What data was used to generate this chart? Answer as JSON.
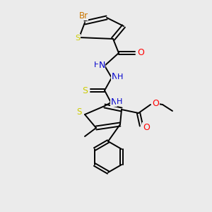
{
  "bg_color": "#ebebeb",
  "atom_colors": {
    "C": "#000000",
    "H": "#000000",
    "N": "#0000cc",
    "O": "#ff0000",
    "S": "#cccc00",
    "Br": "#cc7700"
  },
  "bond_color": "#000000",
  "figsize": [
    3.0,
    3.0
  ],
  "dpi": 100
}
